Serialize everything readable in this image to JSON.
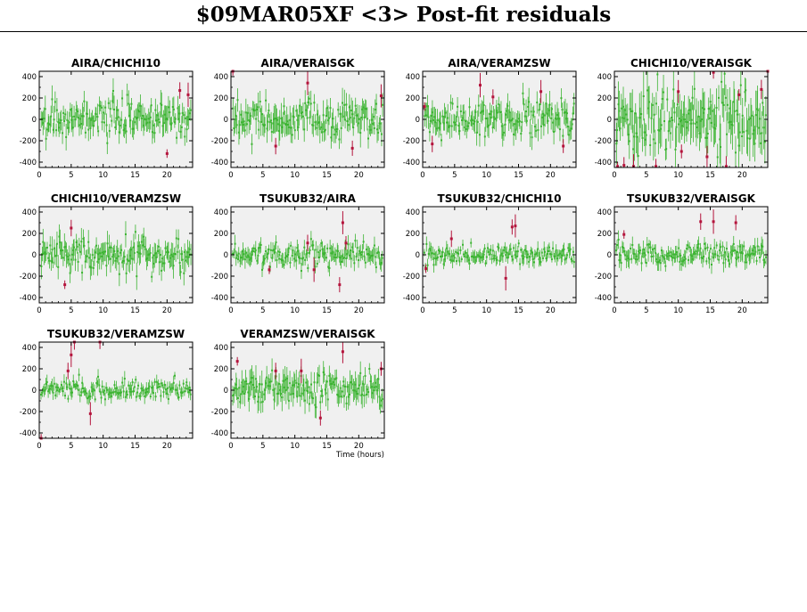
{
  "page_title": "$09MAR05XF <3> Post-fit residuals",
  "x_axis_label": "Time (hours)",
  "colors": {
    "good_points": "#3cb432",
    "flagged_points": "#b4143c",
    "panel_background": "#f0f0f0"
  },
  "chart_data": [
    {
      "type": "scatter",
      "title": "AIRA/CHICHI10",
      "xlim": [
        0,
        24
      ],
      "ylim": [
        -450,
        450
      ],
      "xticks": [
        0,
        5,
        10,
        15,
        20
      ],
      "yticks": [
        -400,
        -200,
        0,
        200,
        400
      ],
      "noise": 90,
      "outliers": [
        {
          "x": 20.0,
          "y": -320
        },
        {
          "x": 22.0,
          "y": 270
        },
        {
          "x": 23.3,
          "y": 230
        }
      ]
    },
    {
      "type": "scatter",
      "title": "AIRA/VERAISGK",
      "xlim": [
        0,
        24
      ],
      "ylim": [
        -450,
        450
      ],
      "xticks": [
        0,
        5,
        10,
        15,
        20
      ],
      "yticks": [
        -400,
        -200,
        0,
        200,
        400
      ],
      "noise": 100,
      "outliers": [
        {
          "x": 0.3,
          "y": 450
        },
        {
          "x": 7.0,
          "y": -250
        },
        {
          "x": 12.0,
          "y": 340
        },
        {
          "x": 19.0,
          "y": -270
        },
        {
          "x": 23.5,
          "y": 220
        }
      ]
    },
    {
      "type": "scatter",
      "title": "AIRA/VERAMZSW",
      "xlim": [
        0,
        24
      ],
      "ylim": [
        -450,
        450
      ],
      "xticks": [
        0,
        5,
        10,
        15,
        20
      ],
      "yticks": [
        -400,
        -200,
        0,
        200,
        400
      ],
      "noise": 90,
      "outliers": [
        {
          "x": 0.3,
          "y": 120
        },
        {
          "x": 1.5,
          "y": -230
        },
        {
          "x": 9.0,
          "y": 320
        },
        {
          "x": 11.0,
          "y": 210
        },
        {
          "x": 18.5,
          "y": 260
        },
        {
          "x": 22.0,
          "y": -250
        }
      ]
    },
    {
      "type": "scatter",
      "title": "CHICHI10/VERAISGK",
      "xlim": [
        0,
        24
      ],
      "ylim": [
        -450,
        450
      ],
      "xticks": [
        0,
        5,
        10,
        15,
        20
      ],
      "yticks": [
        -400,
        -200,
        0,
        200,
        400
      ],
      "noise": 160,
      "outliers": [
        {
          "x": 0.5,
          "y": -440
        },
        {
          "x": 1.5,
          "y": -430
        },
        {
          "x": 3.0,
          "y": -440
        },
        {
          "x": 6.5,
          "y": -440
        },
        {
          "x": 10.0,
          "y": 260
        },
        {
          "x": 10.5,
          "y": -300
        },
        {
          "x": 14.5,
          "y": -350
        },
        {
          "x": 15.5,
          "y": 440
        },
        {
          "x": 17.5,
          "y": -440
        },
        {
          "x": 19.5,
          "y": 230
        },
        {
          "x": 23.0,
          "y": 280
        },
        {
          "x": 24.0,
          "y": 450
        }
      ]
    },
    {
      "type": "scatter",
      "title": "CHICHI10/VERAMZSW",
      "xlim": [
        0,
        24
      ],
      "ylim": [
        -450,
        450
      ],
      "xticks": [
        0,
        5,
        10,
        15,
        20
      ],
      "yticks": [
        -400,
        -200,
        0,
        200,
        400
      ],
      "noise": 90,
      "outliers": [
        {
          "x": 4.0,
          "y": -280
        },
        {
          "x": 5.0,
          "y": 250
        }
      ]
    },
    {
      "type": "scatter",
      "title": "TSUKUB32/AIRA",
      "xlim": [
        0,
        24
      ],
      "ylim": [
        -450,
        450
      ],
      "xticks": [
        0,
        5,
        10,
        15,
        20
      ],
      "yticks": [
        -400,
        -200,
        0,
        200,
        400
      ],
      "noise": 60,
      "outliers": [
        {
          "x": 6.0,
          "y": -140
        },
        {
          "x": 12.0,
          "y": 110
        },
        {
          "x": 13.0,
          "y": -140
        },
        {
          "x": 17.0,
          "y": -280
        },
        {
          "x": 17.5,
          "y": 300
        },
        {
          "x": 18.0,
          "y": 110
        }
      ]
    },
    {
      "type": "scatter",
      "title": "TSUKUB32/CHICHI10",
      "xlim": [
        0,
        24
      ],
      "ylim": [
        -450,
        450
      ],
      "xticks": [
        0,
        5,
        10,
        15,
        20
      ],
      "yticks": [
        -400,
        -200,
        0,
        200,
        400
      ],
      "noise": 50,
      "outliers": [
        {
          "x": 0.5,
          "y": -130
        },
        {
          "x": 4.5,
          "y": 150
        },
        {
          "x": 13.0,
          "y": -220
        },
        {
          "x": 14.0,
          "y": 260
        },
        {
          "x": 14.5,
          "y": 270
        }
      ]
    },
    {
      "type": "scatter",
      "title": "TSUKUB32/VERAISGK",
      "xlim": [
        0,
        24
      ],
      "ylim": [
        -450,
        450
      ],
      "xticks": [
        0,
        5,
        10,
        15,
        20
      ],
      "yticks": [
        -400,
        -200,
        0,
        200,
        400
      ],
      "noise": 60,
      "outliers": [
        {
          "x": 1.5,
          "y": 190
        },
        {
          "x": 13.5,
          "y": 310
        },
        {
          "x": 15.5,
          "y": 310
        },
        {
          "x": 19.0,
          "y": 300
        }
      ]
    },
    {
      "type": "scatter",
      "title": "TSUKUB32/VERAMZSW",
      "xlim": [
        0,
        24
      ],
      "ylim": [
        -450,
        450
      ],
      "xticks": [
        0,
        5,
        10,
        15,
        20
      ],
      "yticks": [
        -400,
        -200,
        0,
        200,
        400
      ],
      "noise": 50,
      "outliers": [
        {
          "x": 0.3,
          "y": -450
        },
        {
          "x": 4.5,
          "y": 180
        },
        {
          "x": 5.0,
          "y": 330
        },
        {
          "x": 5.5,
          "y": 450
        },
        {
          "x": 8.0,
          "y": -220
        },
        {
          "x": 9.5,
          "y": 450
        }
      ]
    },
    {
      "type": "scatter",
      "title": "VERAMZSW/VERAISGK",
      "xlim": [
        0,
        24
      ],
      "ylim": [
        -450,
        450
      ],
      "xticks": [
        0,
        5,
        10,
        15,
        20
      ],
      "yticks": [
        -400,
        -200,
        0,
        200,
        400
      ],
      "noise": 90,
      "outliers": [
        {
          "x": 1.0,
          "y": 270
        },
        {
          "x": 7.0,
          "y": 180
        },
        {
          "x": 11.0,
          "y": 180
        },
        {
          "x": 14.0,
          "y": -260
        },
        {
          "x": 17.5,
          "y": 360
        },
        {
          "x": 23.5,
          "y": 200
        }
      ]
    }
  ]
}
